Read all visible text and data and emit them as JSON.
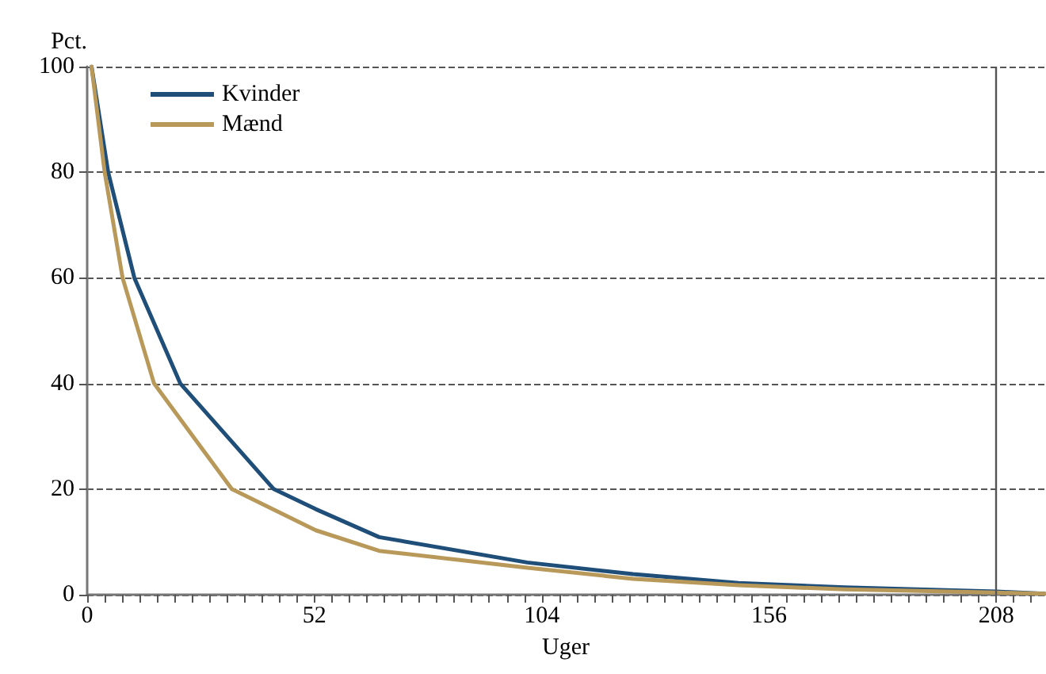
{
  "chart_data": {
    "type": "line",
    "xlabel": "Uger",
    "ylabel": "Pct.",
    "xlim": [
      0,
      219
    ],
    "xticks": [
      0,
      {
        "value": 4,
        "label": null
      },
      {
        "value": 8,
        "label": null
      },
      {
        "value": 12,
        "label": null
      },
      {
        "value": 16,
        "label": null
      },
      {
        "value": 20,
        "label": null
      },
      {
        "value": 24,
        "label": null
      },
      {
        "value": 28,
        "label": null
      },
      {
        "value": 32,
        "label": null
      },
      {
        "value": 36,
        "label": null
      },
      {
        "value": 40,
        "label": null
      },
      {
        "value": 44,
        "label": null
      },
      {
        "value": 48,
        "label": null
      },
      52,
      {
        "value": 56,
        "label": null
      },
      {
        "value": 60,
        "label": null
      },
      {
        "value": 64,
        "label": null
      },
      {
        "value": 68,
        "label": null
      },
      {
        "value": 72,
        "label": null
      },
      {
        "value": 76,
        "label": null
      },
      {
        "value": 80,
        "label": null
      },
      {
        "value": 84,
        "label": null
      },
      {
        "value": 88,
        "label": null
      },
      {
        "value": 92,
        "label": null
      },
      {
        "value": 96,
        "label": null
      },
      {
        "value": 100,
        "label": null
      },
      104,
      {
        "value": 108,
        "label": null
      },
      {
        "value": 112,
        "label": null
      },
      {
        "value": 116,
        "label": null
      },
      {
        "value": 120,
        "label": null
      },
      {
        "value": 124,
        "label": null
      },
      {
        "value": 128,
        "label": null
      },
      {
        "value": 132,
        "label": null
      },
      {
        "value": 136,
        "label": null
      },
      {
        "value": 140,
        "label": null
      },
      {
        "value": 144,
        "label": null
      },
      {
        "value": 148,
        "label": null
      },
      {
        "value": 152,
        "label": null
      },
      156,
      {
        "value": 160,
        "label": null
      },
      {
        "value": 164,
        "label": null
      },
      {
        "value": 168,
        "label": null
      },
      {
        "value": 172,
        "label": null
      },
      {
        "value": 176,
        "label": null
      },
      {
        "value": 180,
        "label": null
      },
      {
        "value": 184,
        "label": null
      },
      {
        "value": 188,
        "label": null
      },
      {
        "value": 192,
        "label": null
      },
      {
        "value": 196,
        "label": null
      },
      {
        "value": 200,
        "label": null
      },
      {
        "value": 204,
        "label": null
      },
      208,
      {
        "value": 212,
        "label": null
      },
      {
        "value": 216,
        "label": null
      }
    ],
    "ylim": [
      0,
      100
    ],
    "yticks": [
      0,
      20,
      40,
      60,
      80,
      100
    ],
    "grid": "y",
    "legend": "top left",
    "marker": "none",
    "line_style": "solid",
    "ref_lines": [
      {
        "axis": "x",
        "value": 208,
        "color": "#555555"
      }
    ],
    "series": [
      {
        "name": "Kvinder",
        "color": "#1f4e79",
        "x": [
          1,
          4.8,
          10.8,
          21.3,
          42.7,
          52.3,
          66.8,
          100.7,
          124.9,
          149,
          173.3,
          208,
          219
        ],
        "values": [
          100,
          80,
          60,
          40,
          20,
          16.2,
          10.9,
          6.1,
          3.9,
          2.2,
          1.4,
          0.6,
          0.2
        ]
      },
      {
        "name": "Mænd",
        "color": "#b8995a",
        "x": [
          1,
          4,
          8.1,
          15.3,
          33.1,
          52.3,
          66.8,
          100.7,
          124.9,
          149,
          173.3,
          208,
          219
        ],
        "values": [
          100,
          80,
          60,
          40,
          20,
          12.2,
          8.3,
          5.1,
          3,
          1.8,
          1,
          0.4,
          0.2
        ]
      }
    ]
  }
}
